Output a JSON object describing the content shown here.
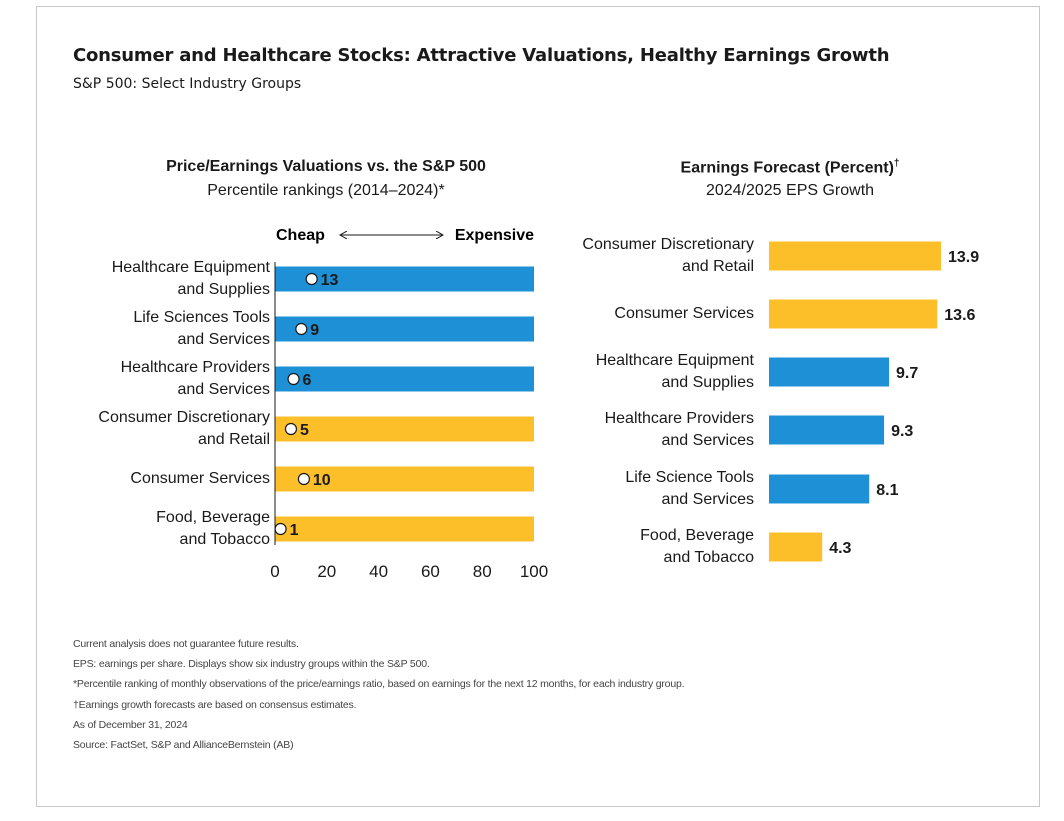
{
  "header": {
    "title": "Consumer and Healthcare Stocks: Attractive Valuations, Healthy Earnings Growth",
    "subtitle": "S&P 500: Select Industry Groups"
  },
  "left_panel": {
    "title": "Price/Earnings Valuations vs. the S&P 500",
    "subtitle": "Percentile rankings (2014–2024)*",
    "scale_left": "Cheap",
    "scale_right": "Expensive"
  },
  "right_panel": {
    "title": "Earnings Forecast (Percent)",
    "title_mark": "†",
    "subtitle": "2024/2025 EPS Growth"
  },
  "colors": {
    "healthcare": "#1e90d6",
    "consumer": "#fcbf2a",
    "marker_fill": "#ffffff",
    "marker_stroke": "#1a1a1a"
  },
  "chart_data": [
    {
      "type": "bar",
      "title": "Price/Earnings Valuations vs. the S&P 500",
      "subtitle": "Percentile rankings (2014–2024)*",
      "categories": [
        "Healthcare Equipment\nand Supplies",
        "Life Sciences Tools\nand Services",
        "Healthcare Providers\nand Services",
        "Consumer Discretionary\nand Retail",
        "Consumer Services",
        "Food, Beverage\nand Tobacco"
      ],
      "values": [
        13,
        9,
        6,
        5,
        10,
        1
      ],
      "groups": [
        "healthcare",
        "healthcare",
        "healthcare",
        "consumer",
        "consumer",
        "consumer"
      ],
      "xlim": [
        0,
        100
      ],
      "xticks": [
        0,
        20,
        40,
        60,
        80,
        100
      ]
    },
    {
      "type": "bar",
      "title": "Earnings Forecast (Percent)†",
      "subtitle": "2024/2025 EPS Growth",
      "categories": [
        "Consumer Discretionary\nand Retail",
        "Consumer Services",
        "Healthcare Equipment\nand Supplies",
        "Healthcare Providers\nand Services",
        "Life Science Tools\nand Services",
        "Food, Beverage\nand Tobacco"
      ],
      "values": [
        13.9,
        13.6,
        9.7,
        9.3,
        8.1,
        4.3
      ],
      "value_labels": [
        "13.9",
        "13.6",
        "9.7",
        "9.3",
        "8.1",
        "4.3"
      ],
      "groups": [
        "consumer",
        "consumer",
        "healthcare",
        "healthcare",
        "healthcare",
        "consumer"
      ]
    }
  ],
  "footnotes": [
    "Current analysis does not guarantee future results.",
    "EPS: earnings per share. Displays show six industry groups within the S&P 500.",
    "*Percentile ranking of monthly observations of the price/earnings ratio, based on earnings for the next 12 months, for each industry group.",
    "†Earnings growth forecasts are based on consensus estimates.",
    "As of December 31, 2024",
    "Source: FactSet, S&P and AllianceBernstein (AB)"
  ]
}
